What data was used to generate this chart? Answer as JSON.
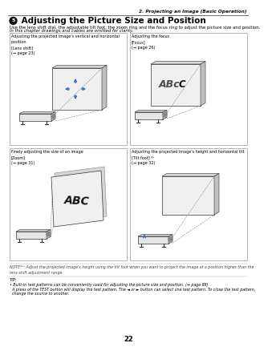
{
  "page_header": "2. Projecting an Image (Basic Operation)",
  "section_num": "5",
  "section_title": " Adjusting the Picture Size and Position",
  "section_intro_1": "Use the lens shift dial, the adjustable tilt foot, the zoom ring and the focus ring to adjust the picture size and position.",
  "section_intro_2": "In this chapter drawings and cables are omitted for clarity.",
  "box1_title": "Adjusting the projected image's vertical and horizontal\nposition\n[Lens shift]\n(→ page 23)",
  "box2_title": "Adjusting the focus\n[Focus]\n(→ page 26)",
  "box3_title": "Finely adjusting the size of an image\n[Zoom]\n(→ page 31)",
  "box4_title": "Adjusting the projected image's height and horizontal tilt\n[Tilt foot] *¹\n(→ page 32)",
  "note_text": "NOTE*¹: Adjust the projected image's height using the tilt foot when you want to project the image at a position higher than the\nlens shift adjustment range.",
  "tip_label": "TIP:",
  "tip_line1": "• Built-in test patterns can be conveniently used for adjusting the picture size and position. (→ page 88)",
  "tip_line2": "  A press of the TEST button will display the test pattern. The ◄ or ► button can select one test pattern. To close the test pattern,",
  "tip_line3": "  change the source to another.",
  "page_num": "22",
  "bg_color": "#ffffff",
  "text_color": "#000000",
  "box_border_color": "#999999",
  "blue_color": "#3366cc"
}
